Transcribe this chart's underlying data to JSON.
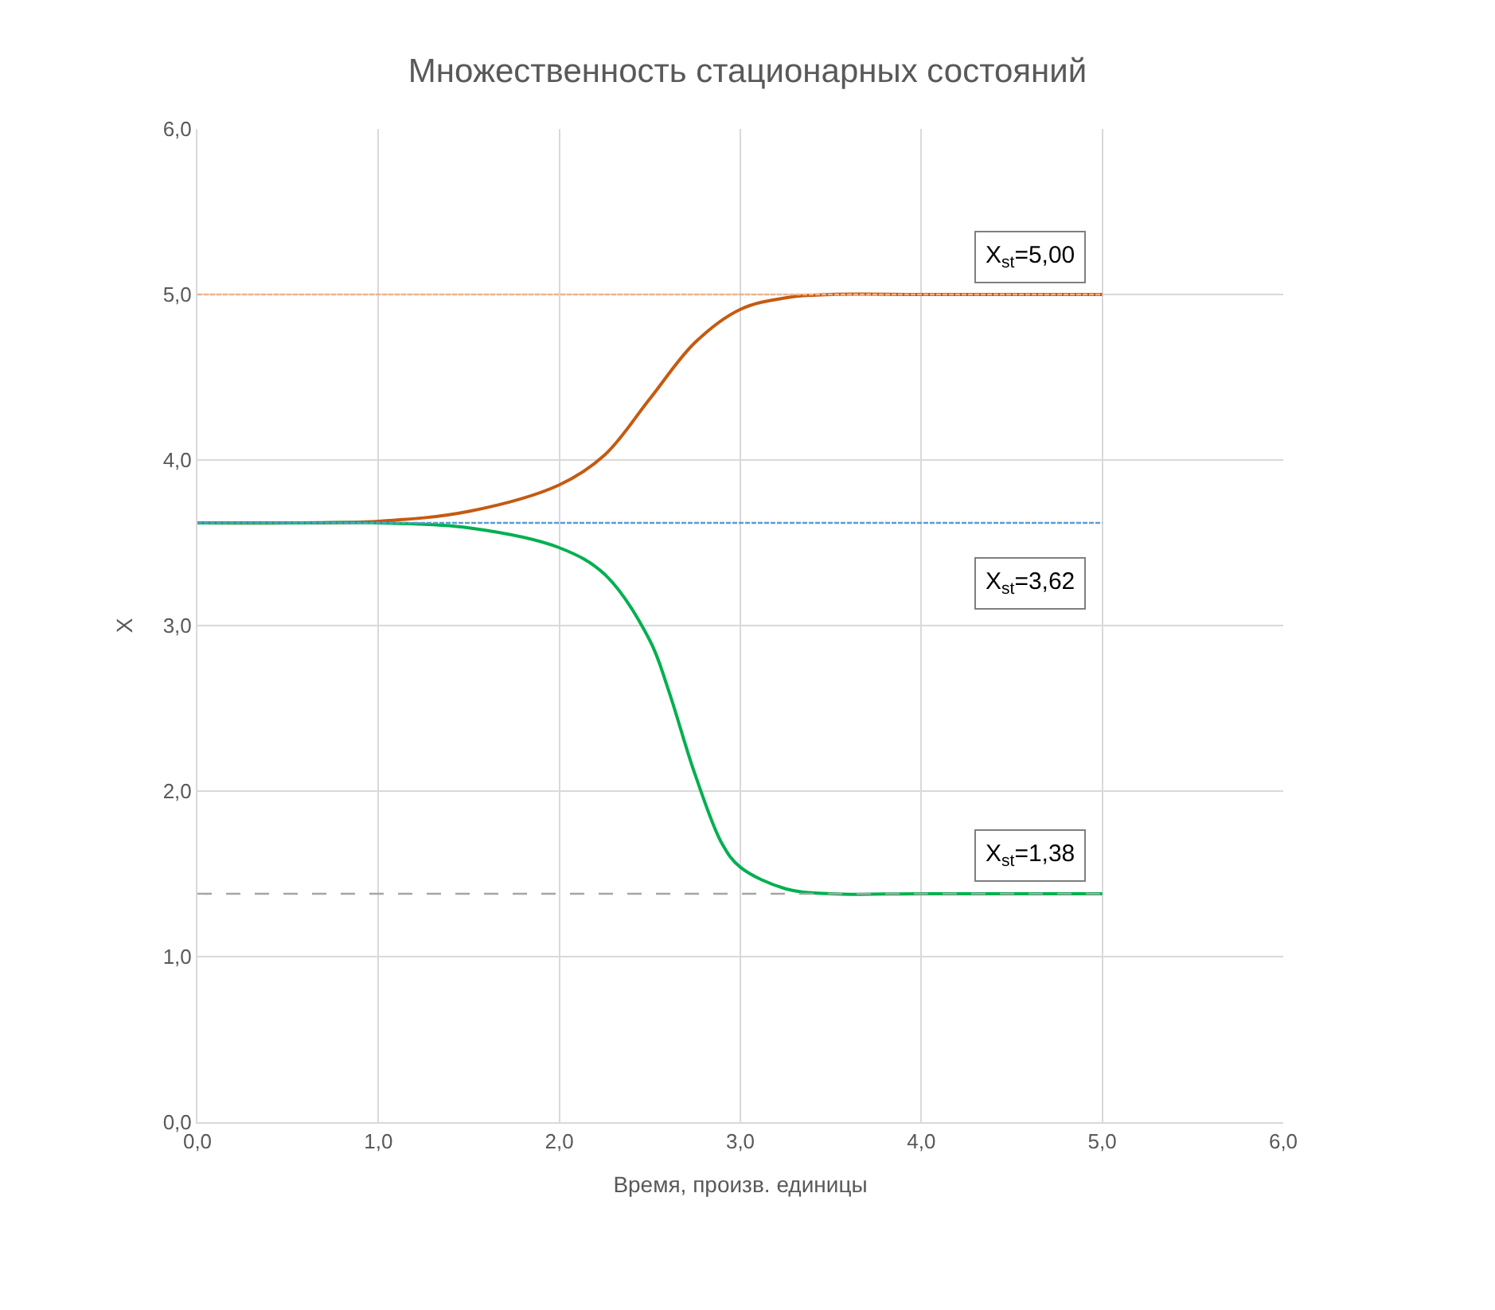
{
  "chart_data": {
    "type": "line",
    "title": "Множественность стационарных состояний",
    "xlabel": "Время, произв. единицы",
    "ylabel": "X",
    "xlim": [
      0,
      6
    ],
    "ylim": [
      0,
      6
    ],
    "xticks": [
      {
        "value": 0,
        "label": "0,0"
      },
      {
        "value": 1,
        "label": "1,0"
      },
      {
        "value": 2,
        "label": "2,0"
      },
      {
        "value": 3,
        "label": "3,0"
      },
      {
        "value": 4,
        "label": "4,0"
      },
      {
        "value": 5,
        "label": "5,0"
      },
      {
        "value": 6,
        "label": "6,0"
      }
    ],
    "yticks": [
      {
        "value": 0,
        "label": "0,0"
      },
      {
        "value": 1,
        "label": "1,0"
      },
      {
        "value": 2,
        "label": "2,0"
      },
      {
        "value": 3,
        "label": "3,0"
      },
      {
        "value": 4,
        "label": "4,0"
      },
      {
        "value": 5,
        "label": "5,0"
      },
      {
        "value": 6,
        "label": "6,0"
      }
    ],
    "grid": true,
    "marker": "none",
    "series": [
      {
        "color": "#f4b183",
        "line_style": "dotted",
        "x": [
          0,
          5
        ],
        "values": [
          5.0,
          5.0
        ]
      },
      {
        "color": "#5b9bd5",
        "line_style": "dotted",
        "x": [
          0,
          5
        ],
        "values": [
          3.62,
          3.62
        ]
      },
      {
        "color": "#a5a5a5",
        "line_style": "dashed",
        "x": [
          0,
          5
        ],
        "values": [
          1.38,
          1.38
        ]
      },
      {
        "color": "#c55a11",
        "line_style": "solid",
        "x": [
          0,
          0.5,
          1,
          1.5,
          2,
          2.25,
          2.5,
          2.75,
          3,
          3.25,
          3.5,
          4,
          5
        ],
        "values": [
          3.62,
          3.62,
          3.63,
          3.69,
          3.85,
          4.03,
          4.37,
          4.71,
          4.91,
          4.98,
          5.0,
          5.0,
          5.0
        ]
      },
      {
        "color": "#00b050",
        "line_style": "solid",
        "x": [
          0,
          0.5,
          1,
          1.5,
          2,
          2.25,
          2.5,
          2.6,
          2.75,
          2.9,
          3,
          3.25,
          3.5,
          4,
          5
        ],
        "values": [
          3.62,
          3.62,
          3.62,
          3.59,
          3.47,
          3.31,
          2.91,
          2.62,
          2.1,
          1.68,
          1.54,
          1.41,
          1.38,
          1.38,
          1.38
        ]
      }
    ],
    "annotations": [
      "X$_{st}$=5,00",
      "X$_{st}$=3,62",
      "X$_{st}$=1,38"
    ]
  }
}
